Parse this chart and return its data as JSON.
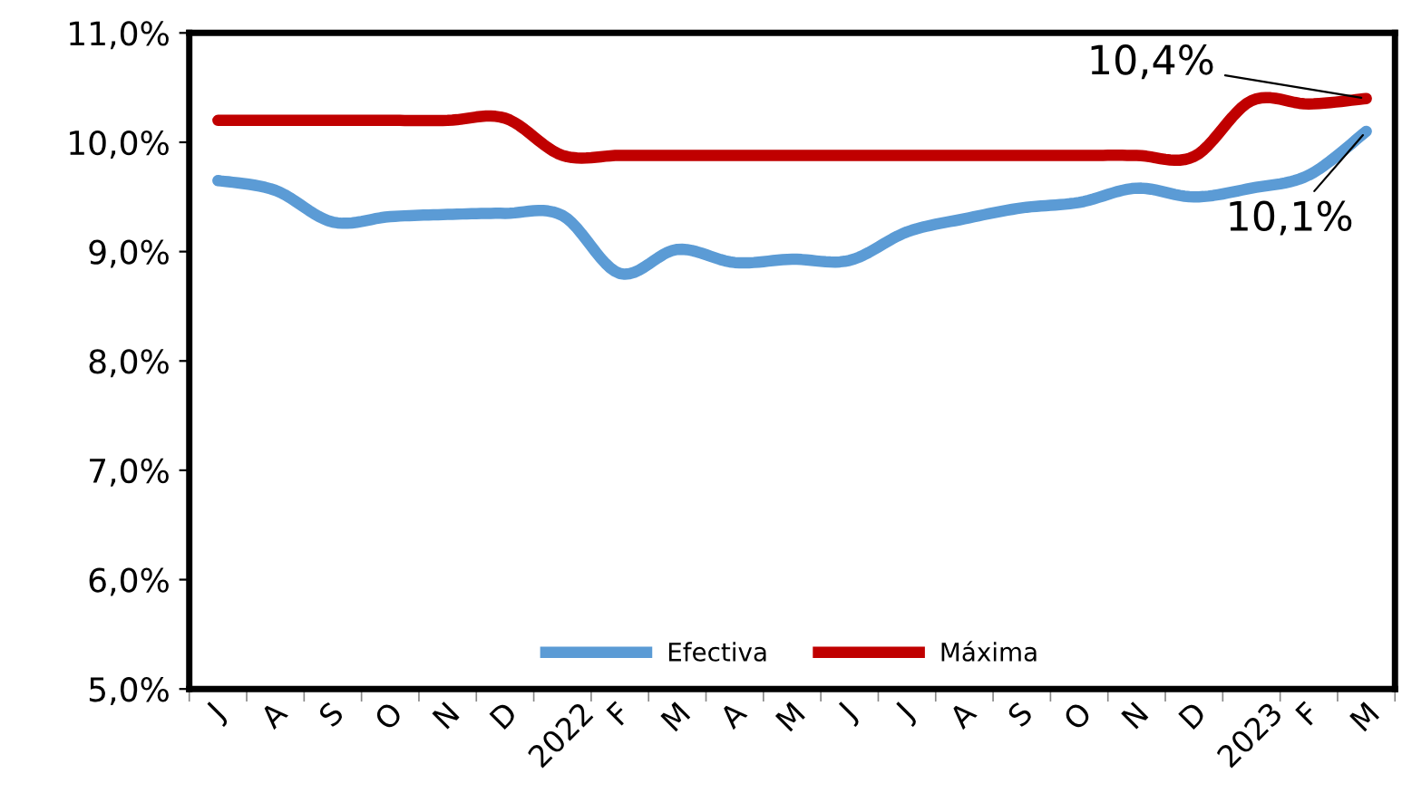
{
  "chart_data": {
    "type": "line",
    "categories": [
      "J",
      "A",
      "S",
      "O",
      "N",
      "D",
      "2022",
      "F",
      "M",
      "A",
      "M",
      "J",
      "J",
      "A",
      "S",
      "O",
      "N",
      "D",
      "2023",
      "F",
      "M"
    ],
    "series": [
      {
        "name": "Efectiva",
        "color": "#5b9bd5",
        "values": [
          9.65,
          9.56,
          9.27,
          9.32,
          9.34,
          9.35,
          9.33,
          8.8,
          9.02,
          8.9,
          8.93,
          8.92,
          9.18,
          9.3,
          9.4,
          9.45,
          9.58,
          9.5,
          9.58,
          9.7,
          10.1
        ],
        "value_labels": [
          null,
          null,
          null,
          null,
          null,
          null,
          null,
          null,
          null,
          null,
          null,
          null,
          null,
          null,
          null,
          null,
          null,
          null,
          null,
          null,
          "10,1%"
        ]
      },
      {
        "name": "Máxima",
        "color": "#c00000",
        "values": [
          10.2,
          10.2,
          10.2,
          10.2,
          10.2,
          10.22,
          9.88,
          9.88,
          9.88,
          9.88,
          9.88,
          9.88,
          9.88,
          9.88,
          9.88,
          9.88,
          9.88,
          9.87,
          10.38,
          10.35,
          10.4
        ],
        "value_labels": [
          null,
          null,
          null,
          null,
          null,
          null,
          null,
          null,
          null,
          null,
          null,
          null,
          null,
          null,
          null,
          null,
          null,
          null,
          null,
          null,
          "10,4%"
        ]
      }
    ],
    "ylim": [
      5,
      11
    ],
    "yticks": [
      {
        "value": 5,
        "label": "5,0%"
      },
      {
        "value": 6,
        "label": "6,0%"
      },
      {
        "value": 7,
        "label": "7,0%"
      },
      {
        "value": 8,
        "label": "8,0%"
      },
      {
        "value": 9,
        "label": "9,0%"
      },
      {
        "value": 10,
        "label": "10,0%"
      },
      {
        "value": 11,
        "label": "11,0%"
      }
    ],
    "grid": false,
    "legend": "bottom",
    "marker": "none",
    "line_style": "solid"
  }
}
